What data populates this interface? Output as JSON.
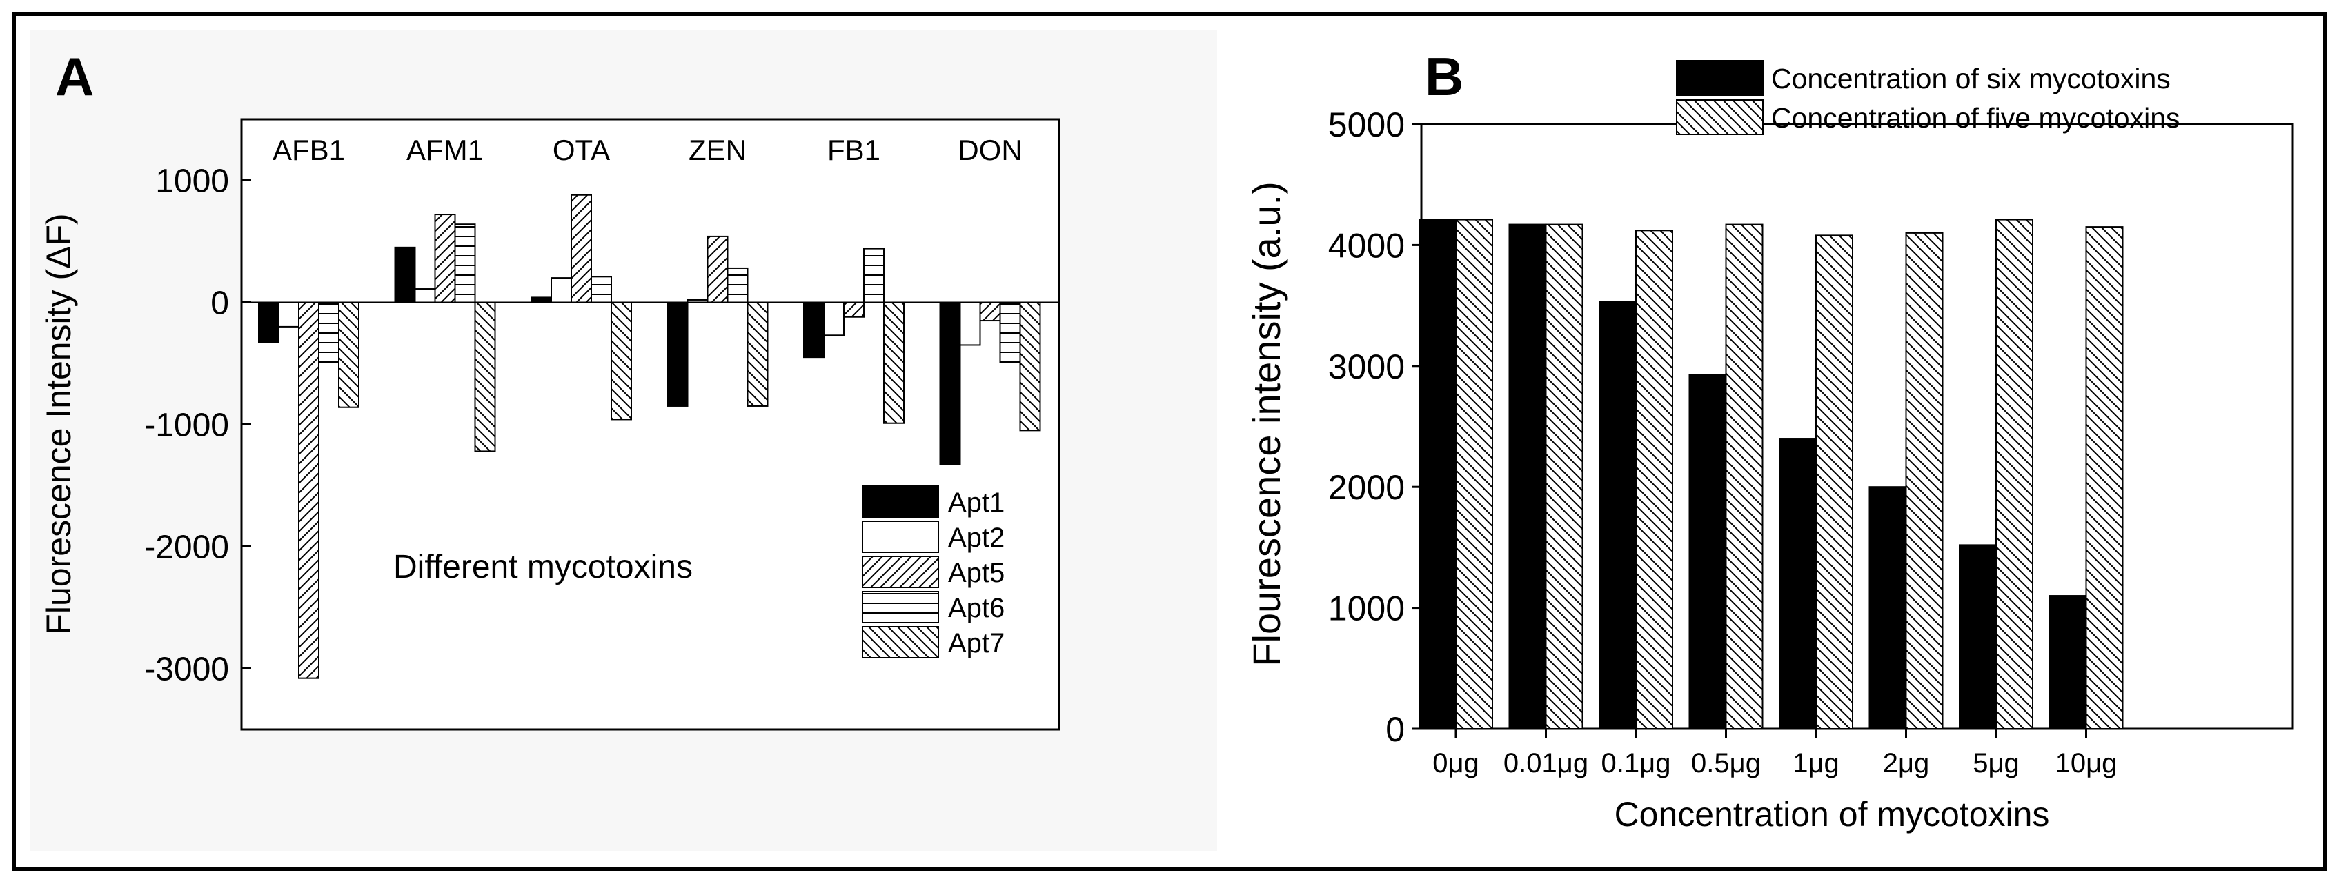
{
  "colors": {
    "ink": "#000000",
    "paper": "#ffffff",
    "panel_bg": "#f7f7f7"
  },
  "chart_data": [
    {
      "type": "bar",
      "panel_label": "A",
      "title": "",
      "xlabel": "Different mycotoxins",
      "ylabel": "Fluorescence Intensity (ΔF)",
      "ylim": [
        -3500,
        1500
      ],
      "yticks": [
        -3000,
        -2000,
        -1000,
        0,
        1000
      ],
      "ytick_labels": [
        "-3000",
        "-2000",
        "-1000",
        "0",
        "1000"
      ],
      "grid": false,
      "legend_position": "bottom-right",
      "categories": [
        "AFB1",
        "AFM1",
        "OTA",
        "ZEN",
        "FB1",
        "DON"
      ],
      "series": [
        {
          "name": "Apt1",
          "pattern": "solid",
          "values": [
            -330,
            450,
            40,
            -850,
            -450,
            -1330
          ]
        },
        {
          "name": "Apt2",
          "pattern": "empty",
          "values": [
            -200,
            110,
            200,
            20,
            -270,
            -350
          ]
        },
        {
          "name": "Apt5",
          "pattern": "diag-right",
          "values": [
            -3080,
            720,
            880,
            540,
            -120,
            -150
          ]
        },
        {
          "name": "Apt6",
          "pattern": "horizontal",
          "values": [
            -490,
            640,
            210,
            280,
            440,
            -490
          ]
        },
        {
          "name": "Apt7",
          "pattern": "diag-left",
          "values": [
            -860,
            -1220,
            -960,
            -850,
            -990,
            -1050
          ]
        }
      ]
    },
    {
      "type": "bar",
      "panel_label": "B",
      "title": "",
      "xlabel": "Concentration of mycotoxins",
      "ylabel": "Flourescence intensity (a.u.)",
      "ylim": [
        0,
        5000
      ],
      "yticks": [
        0,
        1000,
        2000,
        3000,
        4000,
        5000
      ],
      "ytick_labels": [
        "0",
        "1000",
        "2000",
        "3000",
        "4000",
        "5000"
      ],
      "grid": false,
      "legend_position": "top-right",
      "categories": [
        "0μg",
        "0.01μg",
        "0.1μg",
        "0.5μg",
        "1μg",
        "2μg",
        "5μg",
        "10μg"
      ],
      "series": [
        {
          "name": "Concentration of six mycotoxins",
          "pattern": "solid",
          "values": [
            4210,
            4170,
            3530,
            2930,
            2400,
            2000,
            1520,
            1100
          ]
        },
        {
          "name": "Concentration of five mycotoxins",
          "pattern": "diag-left",
          "values": [
            4210,
            4170,
            4120,
            4170,
            4080,
            4100,
            4210,
            4150
          ]
        }
      ]
    }
  ]
}
